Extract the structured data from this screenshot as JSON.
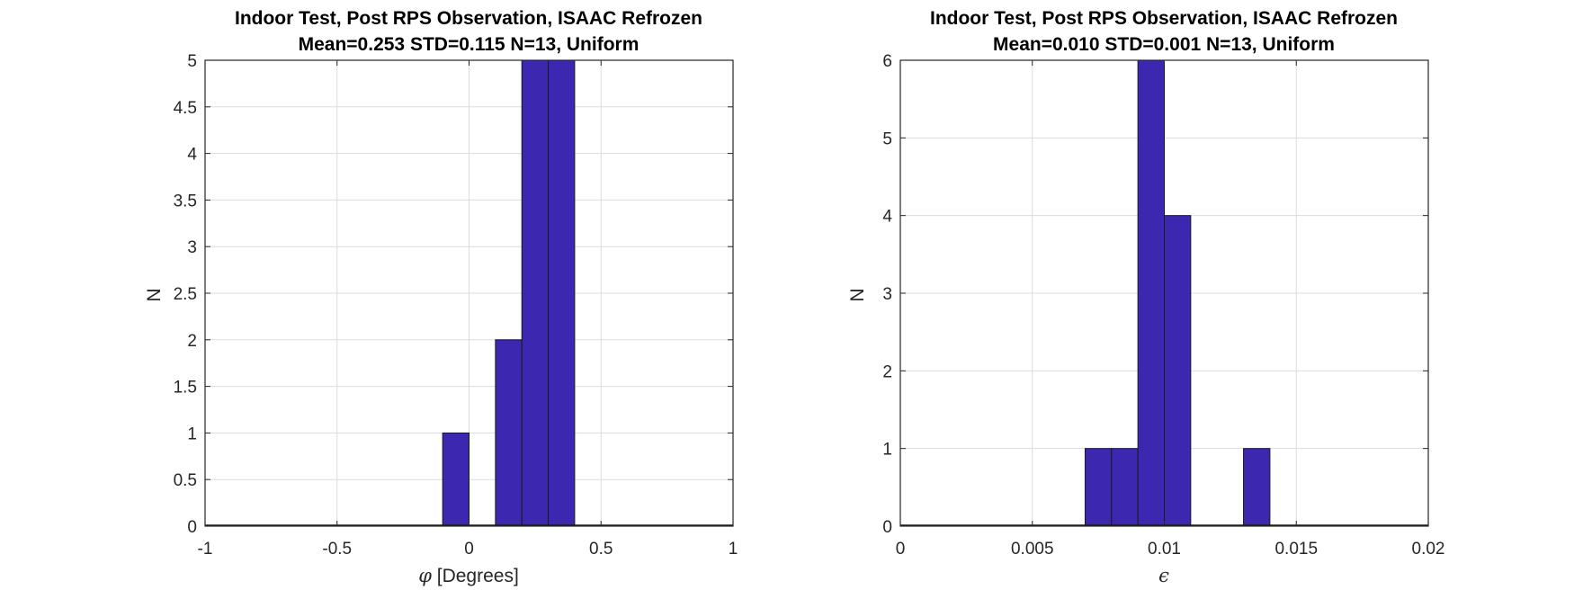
{
  "colors": {
    "bar": "#3c28b0",
    "bar_edge": "#1a1a1a",
    "grid": "#dcdcdc",
    "axis": "#262626"
  },
  "chart_data": [
    {
      "type": "bar",
      "title": "Indoor Test, Post RPS Observation, ISAAC Refrozen",
      "subtitle": "Mean=0.253 STD=0.115 N=13, Uniform",
      "xlabel_symbol": "φ",
      "xlabel_text": " [Degrees]",
      "ylabel": "N",
      "xlim": [
        -1,
        1
      ],
      "ylim": [
        0,
        5
      ],
      "xticks": [
        "-1",
        "-0.5",
        "0",
        "0.5",
        "1"
      ],
      "xtick_values": [
        -1,
        -0.5,
        0,
        0.5,
        1
      ],
      "yticks": [
        "0",
        "0.5",
        "1",
        "1.5",
        "2",
        "2.5",
        "3",
        "3.5",
        "4",
        "4.5",
        "5"
      ],
      "ytick_values": [
        0,
        0.5,
        1,
        1.5,
        2,
        2.5,
        3,
        3.5,
        4,
        4.5,
        5
      ],
      "bins": [
        {
          "x0": -0.1,
          "x1": 0.0,
          "count": 1
        },
        {
          "x0": 0.1,
          "x1": 0.2,
          "count": 2
        },
        {
          "x0": 0.2,
          "x1": 0.3,
          "count": 5
        },
        {
          "x0": 0.3,
          "x1": 0.4,
          "count": 5
        }
      ],
      "grid": true
    },
    {
      "type": "bar",
      "title": "Indoor Test, Post RPS Observation, ISAAC Refrozen",
      "subtitle": "Mean=0.010 STD=0.001 N=13, Uniform",
      "xlabel_symbol": "ϵ",
      "xlabel_text": "",
      "ylabel": "N",
      "xlim": [
        0,
        0.02
      ],
      "ylim": [
        0,
        6
      ],
      "xticks": [
        "0",
        "0.005",
        "0.01",
        "0.015",
        "0.02"
      ],
      "xtick_values": [
        0,
        0.005,
        0.01,
        0.015,
        0.02
      ],
      "yticks": [
        "0",
        "1",
        "2",
        "3",
        "4",
        "5",
        "6"
      ],
      "ytick_values": [
        0,
        1,
        2,
        3,
        4,
        5,
        6
      ],
      "bins": [
        {
          "x0": 0.007,
          "x1": 0.008,
          "count": 1
        },
        {
          "x0": 0.008,
          "x1": 0.009,
          "count": 1
        },
        {
          "x0": 0.009,
          "x1": 0.01,
          "count": 6
        },
        {
          "x0": 0.01,
          "x1": 0.011,
          "count": 4
        },
        {
          "x0": 0.013,
          "x1": 0.014,
          "count": 1
        }
      ],
      "grid": true
    }
  ]
}
